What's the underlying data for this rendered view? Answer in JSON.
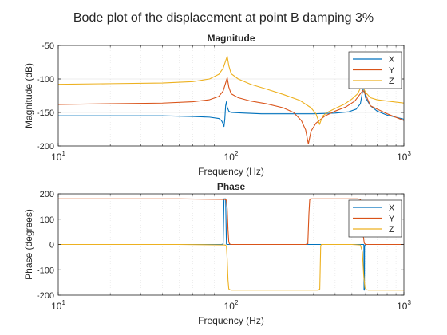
{
  "figure": {
    "title": "Bode plot of the displacement at point B damping 3%"
  },
  "colors": {
    "X": "#0072BD",
    "Y": "#D95319",
    "Z": "#EDB120",
    "axis": "#262626",
    "grid": "#d9d9d9"
  },
  "chart_data": [
    {
      "type": "line",
      "title": "Magnitude",
      "xlabel": "Frequency (Hz)",
      "ylabel": "Magnitude (dB)",
      "xscale": "log",
      "xlim": [
        10,
        1000
      ],
      "ylim": [
        -200,
        -50
      ],
      "xticks": [
        10,
        100,
        1000
      ],
      "xtick_labels": [
        {
          "base": "10",
          "exp": "1"
        },
        {
          "base": "10",
          "exp": "2"
        },
        {
          "base": "10",
          "exp": "3"
        }
      ],
      "yticks": [
        -200,
        -150,
        -100,
        -50
      ],
      "ytick_labels": [
        "-200",
        "-150",
        "-100",
        "-50"
      ],
      "grid": true,
      "legend": "top-right",
      "series": [
        {
          "name": "X",
          "color": "#0072BD",
          "x": [
            10,
            20,
            40,
            60,
            75,
            85,
            88,
            90,
            91,
            92,
            93,
            94,
            95,
            97,
            100,
            120,
            150,
            200,
            300,
            400,
            480,
            530,
            560,
            575,
            585,
            600,
            640,
            700,
            800,
            1000
          ],
          "y": [
            -155,
            -155,
            -155,
            -156,
            -157,
            -159,
            -162,
            -167,
            -171,
            -160,
            -140,
            -134,
            -142,
            -148,
            -150,
            -151,
            -152,
            -152,
            -152,
            -151,
            -149,
            -145,
            -137,
            -120,
            -112,
            -128,
            -140,
            -148,
            -154,
            -160
          ]
        },
        {
          "name": "Y",
          "color": "#D95319",
          "x": [
            10,
            20,
            40,
            60,
            75,
            85,
            90,
            93,
            95,
            97,
            100,
            110,
            130,
            160,
            200,
            230,
            255,
            270,
            280,
            290,
            310,
            350,
            400,
            460,
            520,
            560,
            580,
            600,
            640,
            700,
            800,
            1000
          ],
          "y": [
            -138,
            -137,
            -136,
            -134,
            -131,
            -126,
            -118,
            -106,
            -98,
            -112,
            -122,
            -128,
            -133,
            -137,
            -143,
            -150,
            -162,
            -176,
            -197,
            -178,
            -166,
            -155,
            -148,
            -142,
            -133,
            -122,
            -117,
            -123,
            -140,
            -145,
            -152,
            -162
          ],
          "labels": []
        },
        {
          "name": "Z",
          "color": "#EDB120",
          "x": [
            10,
            20,
            40,
            60,
            75,
            85,
            90,
            93,
            95,
            97,
            100,
            110,
            130,
            160,
            200,
            250,
            290,
            310,
            320,
            325,
            330,
            340,
            360,
            400,
            450,
            500,
            540,
            560,
            580,
            600,
            640,
            700,
            800,
            1000
          ],
          "y": [
            -108,
            -107,
            -106,
            -104,
            -100,
            -93,
            -84,
            -73,
            -66,
            -80,
            -92,
            -100,
            -108,
            -115,
            -123,
            -132,
            -143,
            -152,
            -162,
            -168,
            -163,
            -155,
            -150,
            -144,
            -138,
            -130,
            -122,
            -114,
            -112,
            -120,
            -128,
            -131,
            -133,
            -136
          ]
        }
      ]
    },
    {
      "type": "line",
      "title": "Phase",
      "xlabel": "Frequency (Hz)",
      "ylabel": "Phase (degrees)",
      "xscale": "log",
      "xlim": [
        10,
        1000
      ],
      "ylim": [
        -200,
        200
      ],
      "xticks": [
        10,
        100,
        1000
      ],
      "xtick_labels": [
        {
          "base": "10",
          "exp": "1"
        },
        {
          "base": "10",
          "exp": "2"
        },
        {
          "base": "10",
          "exp": "3"
        }
      ],
      "yticks": [
        -200,
        -100,
        0,
        100,
        200
      ],
      "ytick_labels": [
        "-200",
        "-100",
        "0",
        "100",
        "200"
      ],
      "grid": true,
      "legend": "top-right",
      "series": [
        {
          "name": "X",
          "color": "#0072BD",
          "x": [
            10,
            50,
            88,
            90,
            91,
            92,
            93,
            94,
            95,
            100,
            200,
            400,
            560,
            585,
            587,
            588,
            589,
            590,
            591,
            592,
            600,
            700,
            1000
          ],
          "y": [
            0,
            0,
            0,
            2,
            180,
            180,
            180,
            2,
            0,
            0,
            0,
            0,
            0,
            0,
            -5,
            -180,
            -180,
            -180,
            -180,
            -5,
            0,
            0,
            0
          ]
        },
        {
          "name": "Y",
          "color": "#D95319",
          "x": [
            10,
            50,
            92,
            94,
            95,
            96,
            97,
            98,
            100,
            150,
            250,
            270,
            278,
            282,
            285,
            288,
            300,
            400,
            540,
            560,
            570,
            580,
            590,
            600,
            700,
            1000
          ],
          "y": [
            180,
            180,
            178,
            175,
            140,
            60,
            10,
            2,
            0,
            0,
            0,
            0,
            3,
            120,
            176,
            180,
            180,
            180,
            180,
            178,
            150,
            40,
            5,
            0,
            0,
            0
          ]
        },
        {
          "name": "Z",
          "color": "#EDB120",
          "x": [
            10,
            50,
            92,
            94,
            95,
            96,
            97,
            98,
            100,
            150,
            250,
            320,
            326,
            328,
            330,
            333,
            340,
            400,
            500,
            560,
            575,
            585,
            595,
            605,
            620,
            700,
            1000
          ],
          "y": [
            0,
            0,
            -2,
            -6,
            -60,
            -140,
            -175,
            -178,
            -180,
            -180,
            -180,
            -180,
            -176,
            -90,
            -5,
            0,
            0,
            0,
            0,
            -2,
            -30,
            -120,
            -170,
            -178,
            -180,
            -180,
            -180
          ]
        }
      ]
    }
  ]
}
